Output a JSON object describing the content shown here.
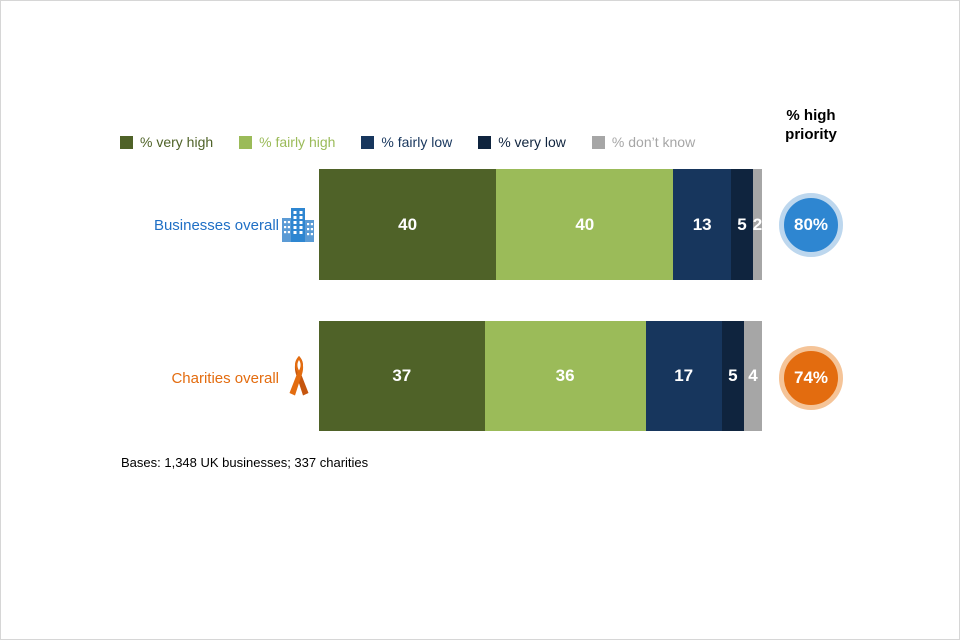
{
  "header": {
    "high_priority": "% high priority"
  },
  "chart_data": {
    "type": "bar",
    "subtype": "stacked-horizontal",
    "title": "",
    "categories": [
      "Businesses overall",
      "Charities overall"
    ],
    "category_colors": [
      "#1F6FC5",
      "#E36C0F"
    ],
    "series": [
      {
        "name": "% very high",
        "color": "#4F6228",
        "values": [
          40,
          37
        ]
      },
      {
        "name": "% fairly high",
        "color": "#9BBB59",
        "values": [
          40,
          36
        ]
      },
      {
        "name": "% fairly low",
        "color": "#17365D",
        "values": [
          13,
          17
        ]
      },
      {
        "name": "% very low",
        "color": "#0F243E",
        "values": [
          5,
          5
        ]
      },
      {
        "name": "% don’t know",
        "color": "#A6A6A6",
        "values": [
          2,
          4
        ]
      }
    ],
    "badges": [
      {
        "label": "80%",
        "color": "#2E86D1",
        "ring": "#BDD7EE"
      },
      {
        "label": "74%",
        "color": "#E36C0F",
        "ring": "#F5C498"
      }
    ],
    "xlim": [
      0,
      100
    ],
    "legend_position": "top",
    "grid": false,
    "note": "Bases: 1,348 UK businesses; 337 charities"
  },
  "icons": {
    "businesses": "buildings-icon",
    "charities": "ribbon-icon"
  }
}
